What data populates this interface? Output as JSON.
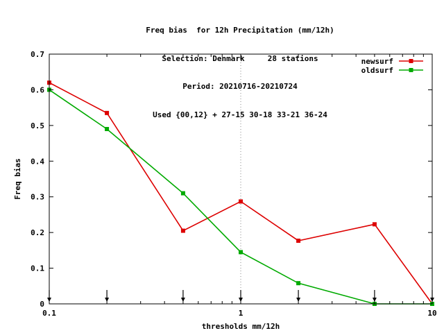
{
  "title_lines": [
    "Freq bias  for 12h Precipitation (mm/12h)",
    "Selection: Denmark     28 stations",
    "Period: 20210716-20210724",
    "Used {00,12} + 27-15 30-18 33-21 36-24"
  ],
  "chart_data": {
    "type": "line",
    "xlabel": "thresholds mm/12h",
    "ylabel": "Freq bias",
    "xscale": "log",
    "xlim": [
      0.1,
      10
    ],
    "ylim": [
      0,
      0.7
    ],
    "yticks": [
      0,
      0.1,
      0.2,
      0.3,
      0.4,
      0.5,
      0.6,
      0.7
    ],
    "ytick_labels": [
      "0",
      "0.1",
      "0.2",
      "0.3",
      "0.4",
      "0.5",
      "0.6",
      "0.7"
    ],
    "xtick_labels": [
      {
        "value": 0.1,
        "label": "0.1"
      },
      {
        "value": 1,
        "label": "1"
      },
      {
        "value": 10,
        "label": "10"
      }
    ],
    "x": [
      0.1,
      0.2,
      0.5,
      1,
      2,
      5,
      10
    ],
    "grid": "dotted, at x=1 and y=0.7",
    "legend_position": "top-right",
    "series": [
      {
        "name": "newsurf",
        "color": "#dd0000",
        "values": [
          0.62,
          0.535,
          0.205,
          0.287,
          0.177,
          0.223,
          0.0
        ]
      },
      {
        "name": "oldsurf",
        "color": "#00aa00",
        "values": [
          0.6,
          0.49,
          0.31,
          0.145,
          0.058,
          0.0,
          0.0
        ]
      }
    ],
    "threshold_arrows": [
      0.1,
      0.2,
      0.5,
      1,
      2,
      5,
      10
    ]
  }
}
